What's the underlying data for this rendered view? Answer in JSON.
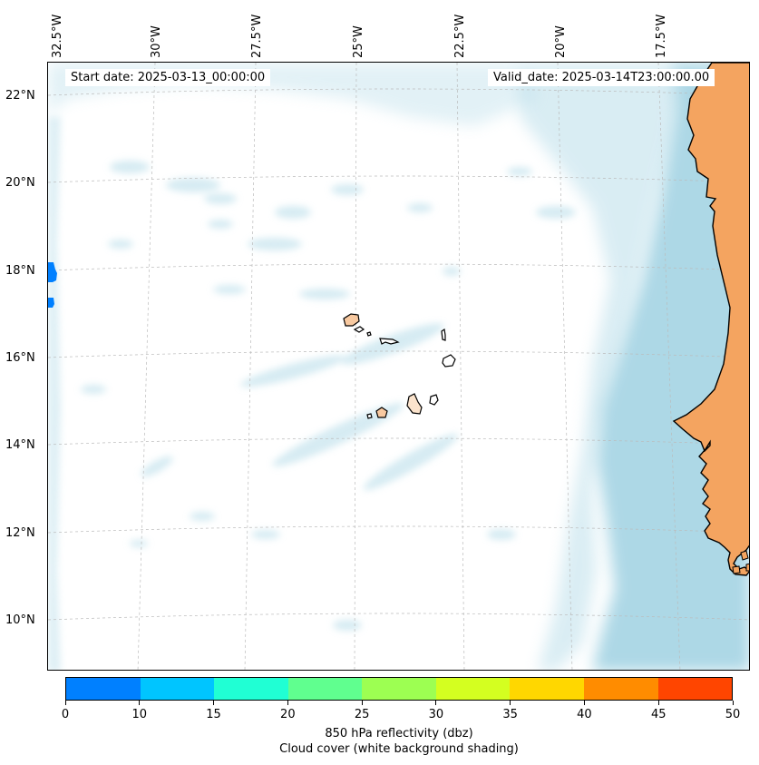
{
  "map": {
    "start_date": "Start date: 2025-03-13_00:00:00",
    "valid_date": "Valid_date: 2025-03-14T23:00:00.00",
    "lon_labels": [
      "32.5°W",
      "30°W",
      "27.5°W",
      "25°W",
      "22.5°W",
      "20°W",
      "17.5°W"
    ],
    "lat_labels": [
      "22°N",
      "20°N",
      "18°N",
      "16°N",
      "14°N",
      "12°N",
      "10°N"
    ],
    "colors": {
      "land": "#f4a460",
      "ocean_cloud": "#add8e6",
      "coast": "#000000",
      "grid": "#bbbbbb"
    }
  },
  "colorbar": {
    "label_line1": "850 hPa reflectivity (dbz)",
    "label_line2": "Cloud cover (white background shading)",
    "ticks": [
      "0",
      "10",
      "15",
      "20",
      "25",
      "30",
      "35",
      "40",
      "45",
      "50"
    ],
    "colors": [
      "#0080ff",
      "#00c5ff",
      "#20ffd4",
      "#60ff8f",
      "#9dff52",
      "#d4ff20",
      "#ffd700",
      "#ff8c00",
      "#ff4500"
    ]
  }
}
